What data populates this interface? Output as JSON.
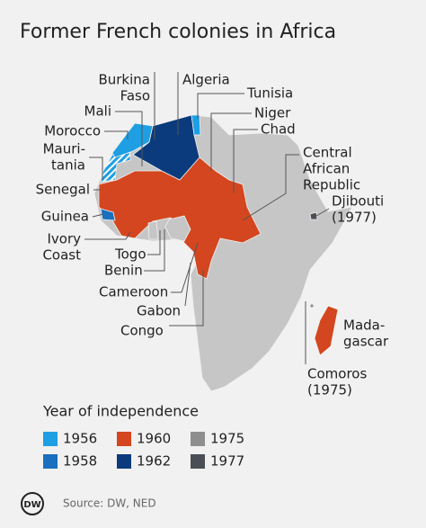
{
  "title": "Former French colonies in Africa",
  "labels": [
    {
      "lines": [
        "Burkina",
        "Faso"
      ]
    },
    {
      "lines": [
        "Algeria"
      ]
    },
    {
      "lines": [
        "Tunisia"
      ]
    },
    {
      "lines": [
        "Mali"
      ]
    },
    {
      "lines": [
        "Niger"
      ]
    },
    {
      "lines": [
        "Morocco"
      ]
    },
    {
      "lines": [
        "Chad"
      ]
    },
    {
      "lines": [
        "Mauri-",
        "tania"
      ]
    },
    {
      "lines": [
        "Central",
        "African",
        "Republic"
      ]
    },
    {
      "lines": [
        "Senegal"
      ]
    },
    {
      "lines": [
        "Djibouti",
        "(1977)"
      ]
    },
    {
      "lines": [
        "Guinea"
      ]
    },
    {
      "lines": [
        "Ivory",
        "Coast"
      ]
    },
    {
      "lines": [
        "Togo"
      ]
    },
    {
      "lines": [
        "Benin"
      ]
    },
    {
      "lines": [
        "Cameroon"
      ]
    },
    {
      "lines": [
        "Gabon"
      ]
    },
    {
      "lines": [
        "Congo"
      ]
    },
    {
      "lines": [
        "Mada-",
        "gascar"
      ]
    },
    {
      "lines": [
        "Comoros",
        "(1975)"
      ]
    }
  ],
  "legend": {
    "title": "Year of independence",
    "items": [
      {
        "year": 1956,
        "color": "#1e9fe4"
      },
      {
        "year": 1958,
        "color": "#1a6fbe"
      },
      {
        "year": 1960,
        "color": "#d4461f"
      },
      {
        "year": 1962,
        "color": "#0b3b7c"
      },
      {
        "year": 1975,
        "color": "#8e8e8e"
      },
      {
        "year": 1977,
        "color": "#4a4f55"
      }
    ]
  },
  "logo": "DW",
  "source": "Source: DW, NED"
}
